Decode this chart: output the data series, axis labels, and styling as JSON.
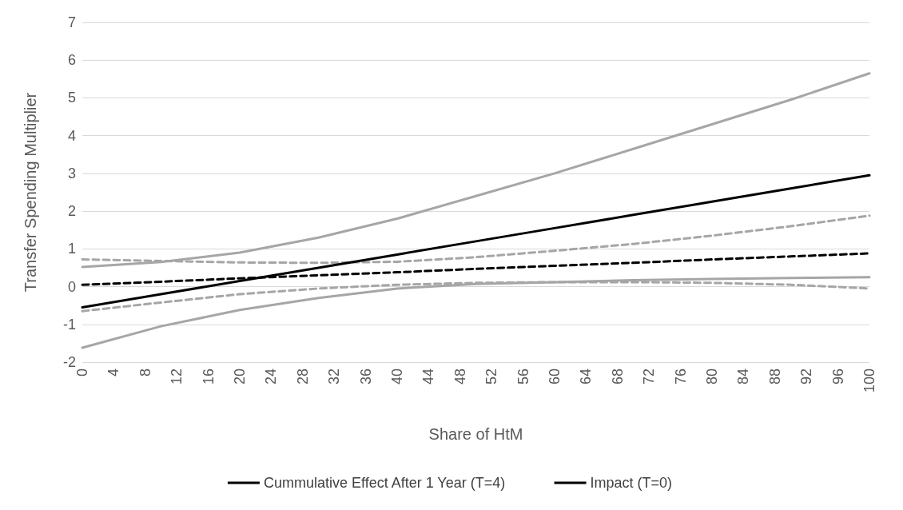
{
  "chart_data": {
    "type": "line",
    "xlabel": "Share of HtM",
    "ylabel": "Transfer Spending Multiplier",
    "xlim": [
      0,
      100
    ],
    "xticks": [
      0,
      4,
      8,
      12,
      16,
      20,
      24,
      28,
      32,
      36,
      40,
      44,
      48,
      52,
      56,
      60,
      64,
      68,
      72,
      76,
      80,
      84,
      88,
      92,
      96,
      100
    ],
    "ylim": [
      -2,
      7
    ],
    "yticks": [
      -2,
      -1,
      0,
      1,
      2,
      3,
      4,
      5,
      6,
      7
    ],
    "grid": "y",
    "legend": "bottom",
    "marker": "none",
    "series": [
      {
        "color": "#a6a6a6",
        "line_style": "solid",
        "x": [
          0,
          10,
          20,
          30,
          40,
          50,
          60,
          70,
          80,
          90,
          100
        ],
        "values": [
          0.52,
          0.65,
          0.9,
          1.3,
          1.8,
          2.4,
          3.0,
          3.65,
          4.3,
          4.95,
          5.65
        ]
      },
      {
        "color": "#a6a6a6",
        "line_style": "solid",
        "x": [
          0,
          10,
          20,
          30,
          40,
          50,
          60,
          70,
          80,
          90,
          100
        ],
        "values": [
          -1.62,
          -1.05,
          -0.62,
          -0.3,
          -0.05,
          0.07,
          0.12,
          0.17,
          0.2,
          0.23,
          0.25
        ]
      },
      {
        "color": "#a6a6a6",
        "line_style": "dashed",
        "x": [
          0,
          10,
          20,
          30,
          40,
          50,
          60,
          70,
          80,
          90,
          100
        ],
        "values": [
          0.72,
          0.68,
          0.64,
          0.63,
          0.66,
          0.78,
          0.95,
          1.13,
          1.35,
          1.6,
          1.88
        ]
      },
      {
        "color": "#a6a6a6",
        "line_style": "dashed",
        "x": [
          0,
          10,
          20,
          30,
          40,
          50,
          60,
          70,
          80,
          90,
          100
        ],
        "values": [
          -0.65,
          -0.42,
          -0.2,
          -0.05,
          0.05,
          0.1,
          0.12,
          0.12,
          0.1,
          0.05,
          -0.05
        ]
      },
      {
        "name": "Cummulative Effect After 1 Year (T=4)",
        "color": "#000000",
        "line_style": "solid",
        "x": [
          0,
          10,
          20,
          30,
          40,
          50,
          60,
          70,
          80,
          90,
          100
        ],
        "values": [
          -0.55,
          -0.2,
          0.15,
          0.5,
          0.85,
          1.2,
          1.55,
          1.9,
          2.25,
          2.6,
          2.95
        ]
      },
      {
        "name": "Impact (T=0)",
        "color": "#000000",
        "line_style": "dashed",
        "x": [
          0,
          10,
          20,
          30,
          40,
          50,
          60,
          70,
          80,
          90,
          100
        ],
        "values": [
          0.05,
          0.13,
          0.22,
          0.3,
          0.38,
          0.47,
          0.55,
          0.63,
          0.72,
          0.8,
          0.88
        ]
      }
    ]
  }
}
